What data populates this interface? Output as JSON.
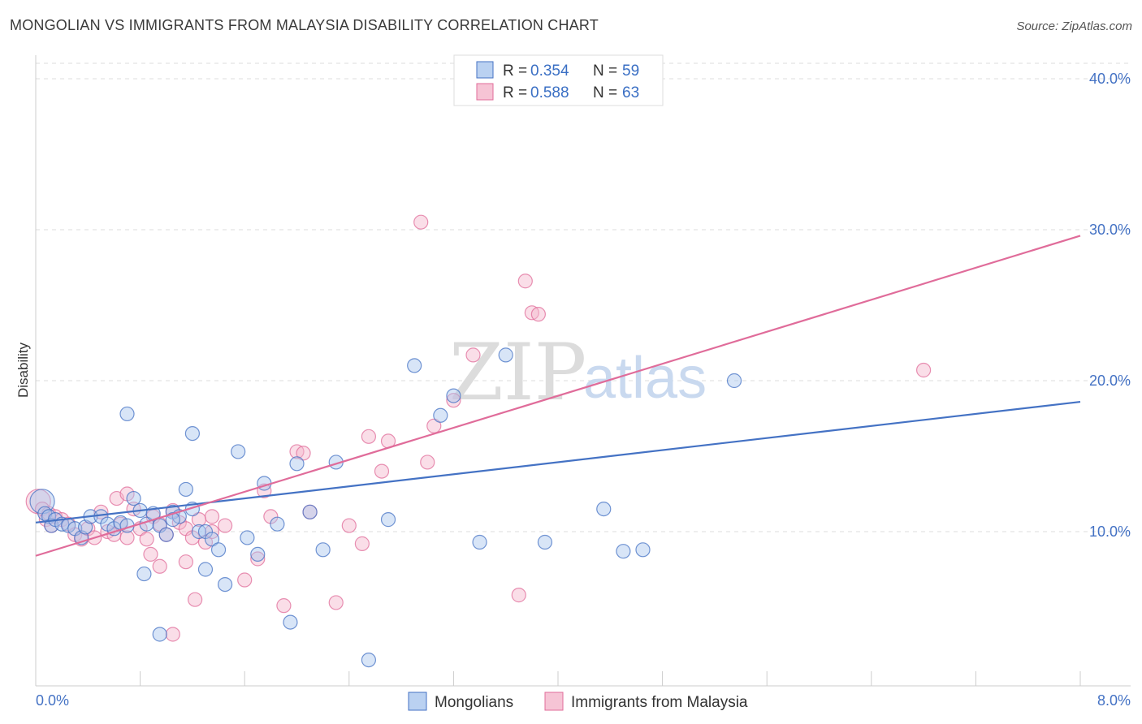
{
  "title": "MONGOLIAN VS IMMIGRANTS FROM MALAYSIA DISABILITY CORRELATION CHART",
  "source": "Source: ZipAtlas.com",
  "watermark": {
    "zip": "ZIP",
    "atlas": "atlas"
  },
  "colors": {
    "blue": "#4472c4",
    "blue_fill": "#a9c5ee",
    "pink": "#e06c9a",
    "pink_fill": "#f4b5cb"
  },
  "legend": {
    "items": [
      {
        "r_label": "R =",
        "r_value": "0.354",
        "n_label": "N =",
        "n_value": "59"
      },
      {
        "r_label": "R =",
        "r_value": "0.588",
        "n_label": "N =",
        "n_value": "63"
      }
    ]
  },
  "chart_data": {
    "type": "scatter",
    "title": "MONGOLIAN VS IMMIGRANTS FROM MALAYSIA DISABILITY CORRELATION CHART",
    "xlabel": "",
    "ylabel": "Disability",
    "xlim": [
      0.0,
      8.0
    ],
    "ylim": [
      0.0,
      40.0
    ],
    "x_tick_labels": [
      "0.0%",
      "8.0%"
    ],
    "y_ticks": [
      10,
      20,
      30,
      40
    ],
    "y_tick_labels": [
      "10.0%",
      "20.0%",
      "30.0%",
      "40.0%"
    ],
    "grid": true,
    "legend_position": "top-center",
    "series": [
      {
        "name": "Mongolians",
        "color": "#4472c4",
        "trend": {
          "x": [
            0.0,
            8.0
          ],
          "y": [
            10.6,
            18.6
          ]
        },
        "points": [
          {
            "x": 0.05,
            "y": 12.0
          },
          {
            "x": 0.07,
            "y": 11.2
          },
          {
            "x": 0.1,
            "y": 11.0
          },
          {
            "x": 0.12,
            "y": 10.4
          },
          {
            "x": 0.15,
            "y": 10.8
          },
          {
            "x": 0.2,
            "y": 10.5
          },
          {
            "x": 0.25,
            "y": 10.4
          },
          {
            "x": 0.3,
            "y": 10.2
          },
          {
            "x": 0.35,
            "y": 9.6
          },
          {
            "x": 0.38,
            "y": 10.3
          },
          {
            "x": 0.42,
            "y": 11.0
          },
          {
            "x": 0.5,
            "y": 11.0
          },
          {
            "x": 0.55,
            "y": 10.5
          },
          {
            "x": 0.6,
            "y": 10.2
          },
          {
            "x": 0.65,
            "y": 10.6
          },
          {
            "x": 0.7,
            "y": 10.4
          },
          {
            "x": 0.75,
            "y": 12.2
          },
          {
            "x": 0.8,
            "y": 11.4
          },
          {
            "x": 0.85,
            "y": 10.5
          },
          {
            "x": 0.9,
            "y": 11.2
          },
          {
            "x": 0.95,
            "y": 10.4
          },
          {
            "x": 1.0,
            "y": 9.8
          },
          {
            "x": 1.05,
            "y": 11.3
          },
          {
            "x": 1.1,
            "y": 11.0
          },
          {
            "x": 1.15,
            "y": 12.8
          },
          {
            "x": 1.2,
            "y": 11.5
          },
          {
            "x": 1.25,
            "y": 10.0
          },
          {
            "x": 1.3,
            "y": 10.0
          },
          {
            "x": 1.35,
            "y": 9.5
          },
          {
            "x": 1.4,
            "y": 8.8
          },
          {
            "x": 0.7,
            "y": 17.8
          },
          {
            "x": 0.83,
            "y": 7.2
          },
          {
            "x": 0.95,
            "y": 3.2
          },
          {
            "x": 1.05,
            "y": 10.8
          },
          {
            "x": 1.2,
            "y": 16.5
          },
          {
            "x": 1.3,
            "y": 7.5
          },
          {
            "x": 1.45,
            "y": 6.5
          },
          {
            "x": 1.55,
            "y": 15.3
          },
          {
            "x": 1.62,
            "y": 9.6
          },
          {
            "x": 1.7,
            "y": 8.5
          },
          {
            "x": 1.75,
            "y": 13.2
          },
          {
            "x": 1.85,
            "y": 10.5
          },
          {
            "x": 1.95,
            "y": 4.0
          },
          {
            "x": 2.0,
            "y": 14.5
          },
          {
            "x": 2.1,
            "y": 11.3
          },
          {
            "x": 2.2,
            "y": 8.8
          },
          {
            "x": 2.3,
            "y": 14.6
          },
          {
            "x": 2.55,
            "y": 1.5
          },
          {
            "x": 2.7,
            "y": 10.8
          },
          {
            "x": 2.9,
            "y": 21.0
          },
          {
            "x": 3.1,
            "y": 17.7
          },
          {
            "x": 3.2,
            "y": 19.0
          },
          {
            "x": 3.4,
            "y": 9.3
          },
          {
            "x": 3.6,
            "y": 21.7
          },
          {
            "x": 3.9,
            "y": 9.3
          },
          {
            "x": 4.35,
            "y": 11.5
          },
          {
            "x": 4.5,
            "y": 8.7
          },
          {
            "x": 4.65,
            "y": 8.8
          },
          {
            "x": 5.35,
            "y": 20.0
          }
        ]
      },
      {
        "name": "Immigrants from Malaysia",
        "color": "#e06c9a",
        "trend": {
          "x": [
            0.0,
            8.0
          ],
          "y": [
            8.4,
            29.6
          ]
        },
        "points": [
          {
            "x": 0.02,
            "y": 12.0
          },
          {
            "x": 0.05,
            "y": 11.5
          },
          {
            "x": 0.08,
            "y": 10.8
          },
          {
            "x": 0.1,
            "y": 11.2
          },
          {
            "x": 0.12,
            "y": 10.4
          },
          {
            "x": 0.15,
            "y": 11.0
          },
          {
            "x": 0.2,
            "y": 10.8
          },
          {
            "x": 0.25,
            "y": 10.5
          },
          {
            "x": 0.3,
            "y": 9.8
          },
          {
            "x": 0.35,
            "y": 9.5
          },
          {
            "x": 0.4,
            "y": 10.2
          },
          {
            "x": 0.45,
            "y": 9.6
          },
          {
            "x": 0.5,
            "y": 11.3
          },
          {
            "x": 0.55,
            "y": 10.0
          },
          {
            "x": 0.6,
            "y": 9.8
          },
          {
            "x": 0.65,
            "y": 10.5
          },
          {
            "x": 0.7,
            "y": 9.6
          },
          {
            "x": 0.75,
            "y": 11.5
          },
          {
            "x": 0.8,
            "y": 10.2
          },
          {
            "x": 0.85,
            "y": 9.5
          },
          {
            "x": 0.9,
            "y": 11.0
          },
          {
            "x": 0.95,
            "y": 10.5
          },
          {
            "x": 1.0,
            "y": 9.8
          },
          {
            "x": 1.05,
            "y": 11.4
          },
          {
            "x": 1.1,
            "y": 10.6
          },
          {
            "x": 1.15,
            "y": 10.2
          },
          {
            "x": 1.2,
            "y": 9.6
          },
          {
            "x": 1.25,
            "y": 10.8
          },
          {
            "x": 1.3,
            "y": 9.3
          },
          {
            "x": 1.35,
            "y": 11.0
          },
          {
            "x": 0.62,
            "y": 12.2
          },
          {
            "x": 0.7,
            "y": 12.5
          },
          {
            "x": 0.88,
            "y": 8.5
          },
          {
            "x": 0.95,
            "y": 7.7
          },
          {
            "x": 1.05,
            "y": 3.2
          },
          {
            "x": 1.15,
            "y": 8.0
          },
          {
            "x": 1.22,
            "y": 5.5
          },
          {
            "x": 1.35,
            "y": 10.0
          },
          {
            "x": 1.45,
            "y": 10.4
          },
          {
            "x": 1.6,
            "y": 6.8
          },
          {
            "x": 1.7,
            "y": 8.2
          },
          {
            "x": 1.75,
            "y": 12.7
          },
          {
            "x": 1.8,
            "y": 11.0
          },
          {
            "x": 1.9,
            "y": 5.1
          },
          {
            "x": 2.0,
            "y": 15.3
          },
          {
            "x": 2.05,
            "y": 15.2
          },
          {
            "x": 2.1,
            "y": 11.3
          },
          {
            "x": 2.3,
            "y": 5.3
          },
          {
            "x": 2.4,
            "y": 10.4
          },
          {
            "x": 2.5,
            "y": 9.2
          },
          {
            "x": 2.55,
            "y": 16.3
          },
          {
            "x": 2.65,
            "y": 14.0
          },
          {
            "x": 2.7,
            "y": 16.0
          },
          {
            "x": 2.95,
            "y": 30.5
          },
          {
            "x": 3.0,
            "y": 14.6
          },
          {
            "x": 3.05,
            "y": 17.0
          },
          {
            "x": 3.2,
            "y": 18.7
          },
          {
            "x": 3.35,
            "y": 21.7
          },
          {
            "x": 3.7,
            "y": 5.8
          },
          {
            "x": 3.75,
            "y": 26.6
          },
          {
            "x": 3.8,
            "y": 24.5
          },
          {
            "x": 3.85,
            "y": 24.4
          },
          {
            "x": 6.8,
            "y": 20.7
          }
        ]
      }
    ]
  }
}
